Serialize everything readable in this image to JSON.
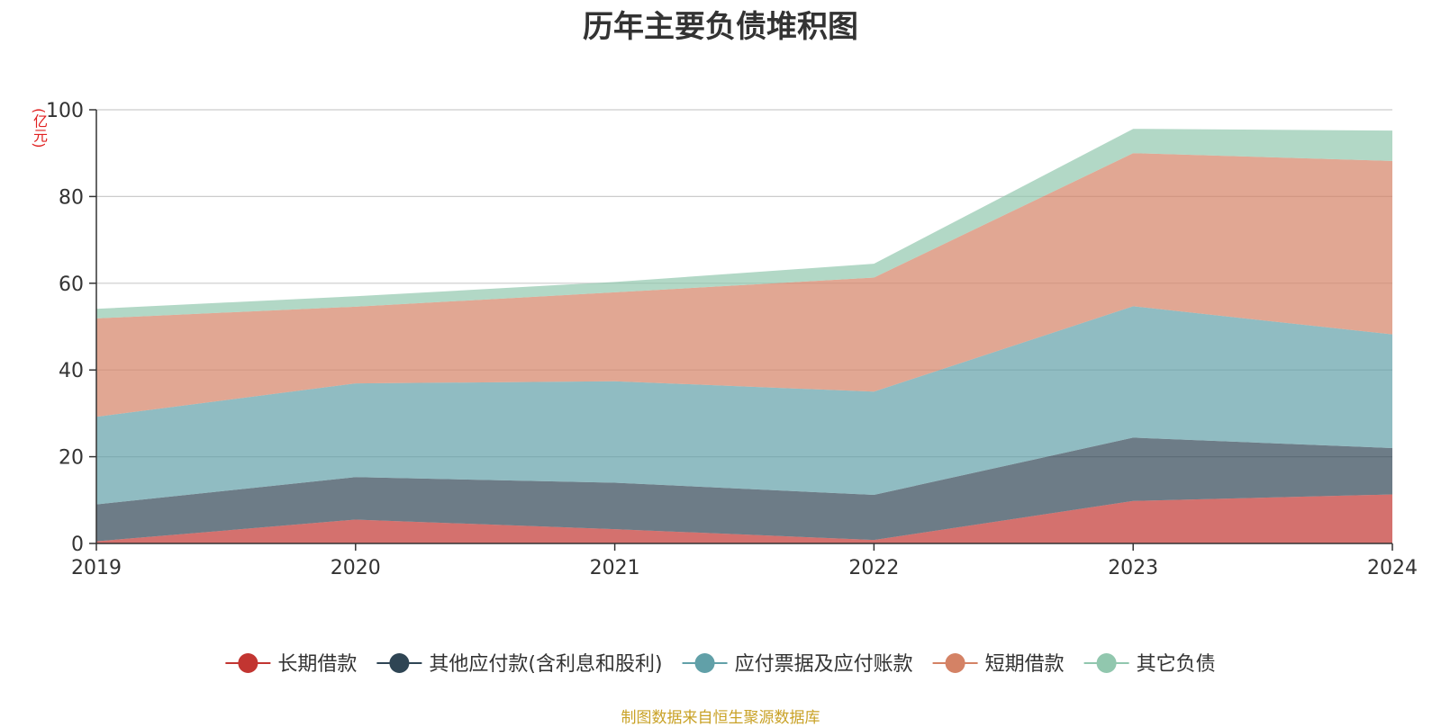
{
  "chart_data": {
    "type": "area",
    "stacked": true,
    "title": "历年主要负债堆积图",
    "unit": "(亿元)",
    "x": [
      "2019",
      "2020",
      "2021",
      "2022",
      "2023",
      "2024"
    ],
    "ylim": [
      0,
      100
    ],
    "yticks": [
      0,
      20,
      40,
      60,
      80,
      100
    ],
    "grid": true,
    "legend_position": "bottom",
    "series": [
      {
        "name": "长期借款",
        "color": "#c23531",
        "values": [
          0.5,
          5.5,
          3.3,
          0.8,
          9.8,
          11.3
        ]
      },
      {
        "name": "其他应付款(含利息和股利)",
        "color": "#2f4554",
        "values": [
          8.5,
          9.8,
          10.7,
          10.4,
          14.6,
          10.7
        ]
      },
      {
        "name": "应付票据及应付账款",
        "color": "#61a0a8",
        "values": [
          20.2,
          21.6,
          23.4,
          23.8,
          30.3,
          26.2
        ]
      },
      {
        "name": "短期借款",
        "color": "#d48265",
        "values": [
          22.7,
          17.7,
          20.5,
          26.3,
          35.3,
          40.0
        ]
      },
      {
        "name": "其它负债",
        "color": "#91c7ae",
        "values": [
          2.2,
          2.4,
          2.4,
          3.2,
          5.6,
          7.0
        ]
      }
    ]
  },
  "source": "制图数据来自恒生聚源数据库"
}
